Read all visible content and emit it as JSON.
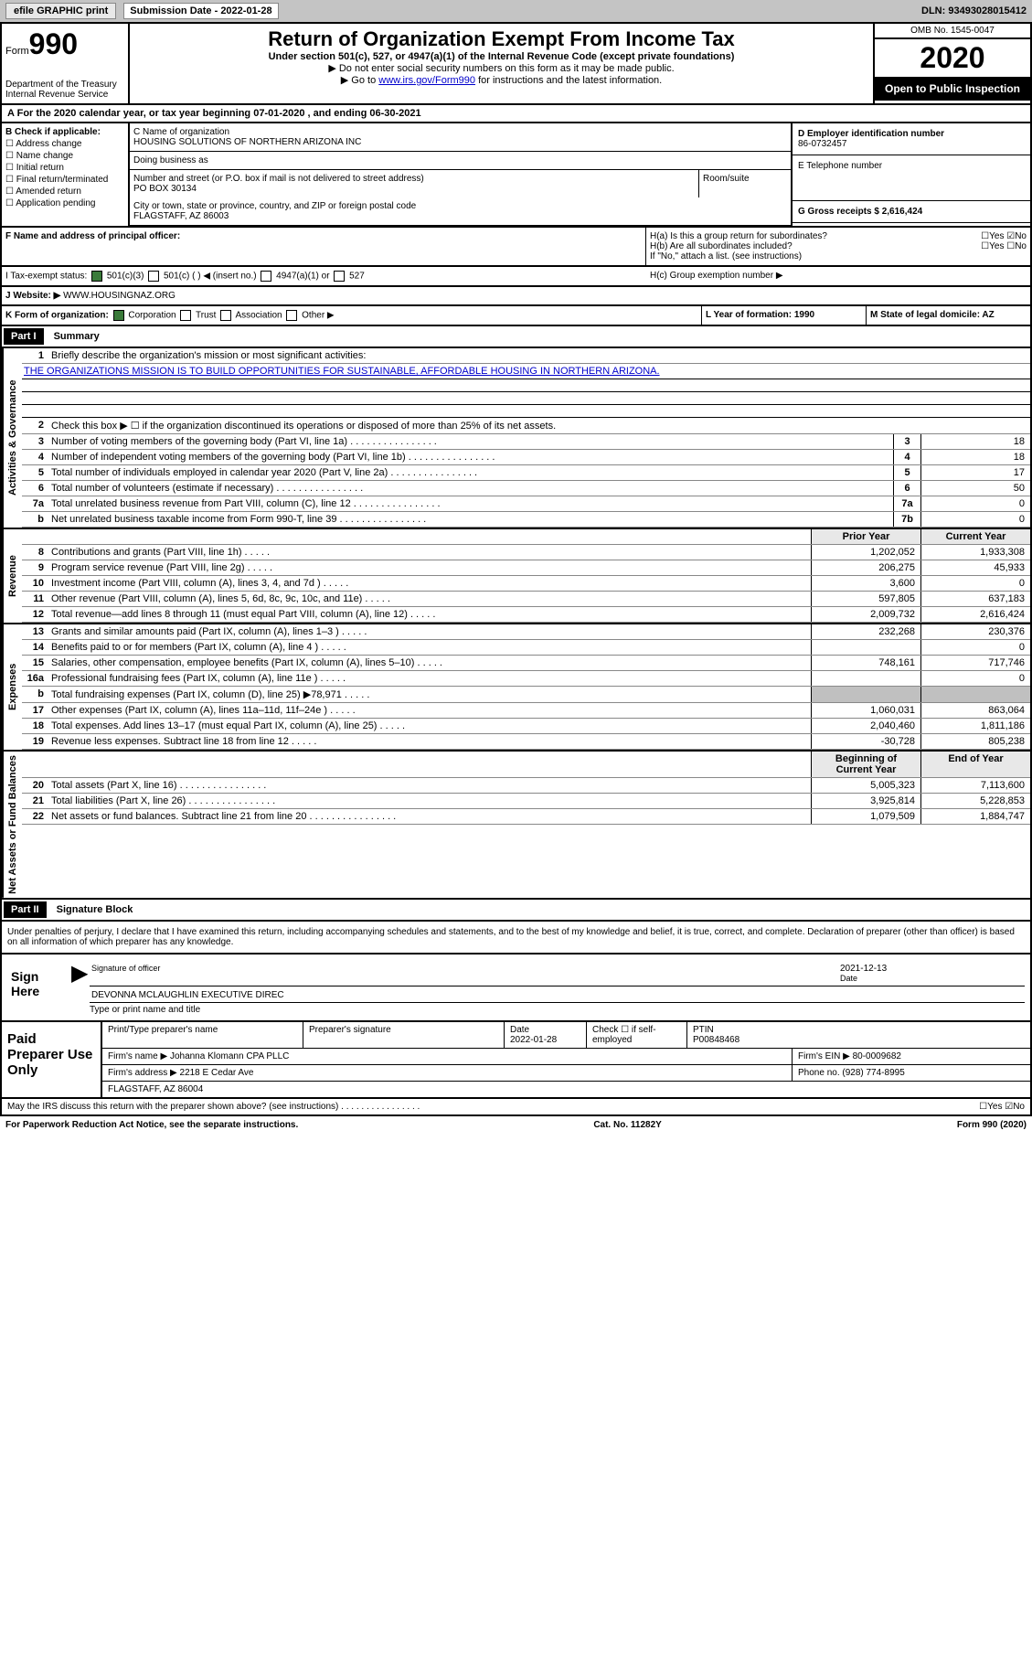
{
  "topbar": {
    "efile": "efile GRAPHIC print",
    "sub_label": "Submission Date - 2022-01-28",
    "dln": "DLN: 93493028015412"
  },
  "header": {
    "form_word": "Form",
    "form_num": "990",
    "dept1": "Department of the Treasury",
    "dept2": "Internal Revenue Service",
    "title": "Return of Organization Exempt From Income Tax",
    "subtitle": "Under section 501(c), 527, or 4947(a)(1) of the Internal Revenue Code (except private foundations)",
    "note1": "▶ Do not enter social security numbers on this form as it may be made public.",
    "note2_pre": "▶ Go to ",
    "note2_link": "www.irs.gov/Form990",
    "note2_post": " for instructions and the latest information.",
    "omb": "OMB No. 1545-0047",
    "year": "2020",
    "inspection": "Open to Public Inspection"
  },
  "line_a": "For the 2020 calendar year, or tax year beginning 07-01-2020    , and ending 06-30-2021",
  "box_b": {
    "label": "B Check if applicable:",
    "opts": [
      "Address change",
      "Name change",
      "Initial return",
      "Final return/terminated",
      "Amended return",
      "Application pending"
    ]
  },
  "box_c": {
    "c_label": "C Name of organization",
    "org_name": "HOUSING SOLUTIONS OF NORTHERN ARIZONA INC",
    "dba_label": "Doing business as",
    "addr_label": "Number and street (or P.O. box if mail is not delivered to street address)",
    "room_label": "Room/suite",
    "addr": "PO BOX 30134",
    "city_label": "City or town, state or province, country, and ZIP or foreign postal code",
    "city": "FLAGSTAFF, AZ  86003",
    "f_label": "F  Name and address of principal officer:"
  },
  "box_d": {
    "d_label": "D Employer identification number",
    "ein": "86-0732457",
    "e_label": "E Telephone number",
    "g_label": "G Gross receipts $ 2,616,424"
  },
  "box_h": {
    "ha": "H(a)  Is this a group return for subordinates?",
    "hb": "H(b)  Are all subordinates included?",
    "hb_note": "If \"No,\" attach a list. (see instructions)",
    "hc": "H(c)  Group exemption number ▶",
    "yes": "Yes",
    "no": "No"
  },
  "tax_exempt": {
    "i_label": "I  Tax-exempt status:",
    "opt1": "501(c)(3)",
    "opt2": "501(c) (   ) ◀ (insert no.)",
    "opt3": "4947(a)(1) or",
    "opt4": "527"
  },
  "website": {
    "j_label": "J  Website: ▶",
    "val": "WWW.HOUSINGNAZ.ORG"
  },
  "box_k": {
    "label": "K Form of organization:",
    "opts": [
      "Corporation",
      "Trust",
      "Association",
      "Other ▶"
    ],
    "l_label": "L Year of formation: 1990",
    "m_label": "M State of legal domicile: AZ"
  },
  "part1": {
    "hdr": "Part I",
    "title": "Summary",
    "q1": "Briefly describe the organization's mission or most significant activities:",
    "mission": "THE ORGANIZATIONS MISSION IS TO BUILD OPPORTUNITIES FOR SUSTAINABLE, AFFORDABLE HOUSING IN NORTHERN ARIZONA.",
    "q2": "Check this box ▶ ☐  if the organization discontinued its operations or disposed of more than 25% of its net assets.",
    "sec_ag": "Activities & Governance",
    "sec_rev": "Revenue",
    "sec_exp": "Expenses",
    "sec_net": "Net Assets or Fund Balances",
    "rows_gov": [
      {
        "n": "3",
        "d": "Number of voting members of the governing body (Part VI, line 1a)",
        "b": "3",
        "v": "18"
      },
      {
        "n": "4",
        "d": "Number of independent voting members of the governing body (Part VI, line 1b)",
        "b": "4",
        "v": "18"
      },
      {
        "n": "5",
        "d": "Total number of individuals employed in calendar year 2020 (Part V, line 2a)",
        "b": "5",
        "v": "17"
      },
      {
        "n": "6",
        "d": "Total number of volunteers (estimate if necessary)",
        "b": "6",
        "v": "50"
      },
      {
        "n": "7a",
        "d": "Total unrelated business revenue from Part VIII, column (C), line 12",
        "b": "7a",
        "v": "0"
      },
      {
        "n": "b",
        "d": "Net unrelated business taxable income from Form 990-T, line 39",
        "b": "7b",
        "v": "0"
      }
    ],
    "hdr_prior": "Prior Year",
    "hdr_curr": "Current Year",
    "rows_rev": [
      {
        "n": "8",
        "d": "Contributions and grants (Part VIII, line 1h)",
        "p": "1,202,052",
        "c": "1,933,308"
      },
      {
        "n": "9",
        "d": "Program service revenue (Part VIII, line 2g)",
        "p": "206,275",
        "c": "45,933"
      },
      {
        "n": "10",
        "d": "Investment income (Part VIII, column (A), lines 3, 4, and 7d )",
        "p": "3,600",
        "c": "0"
      },
      {
        "n": "11",
        "d": "Other revenue (Part VIII, column (A), lines 5, 6d, 8c, 9c, 10c, and 11e)",
        "p": "597,805",
        "c": "637,183"
      },
      {
        "n": "12",
        "d": "Total revenue—add lines 8 through 11 (must equal Part VIII, column (A), line 12)",
        "p": "2,009,732",
        "c": "2,616,424"
      }
    ],
    "rows_exp": [
      {
        "n": "13",
        "d": "Grants and similar amounts paid (Part IX, column (A), lines 1–3 )",
        "p": "232,268",
        "c": "230,376"
      },
      {
        "n": "14",
        "d": "Benefits paid to or for members (Part IX, column (A), line 4 )",
        "p": "",
        "c": "0"
      },
      {
        "n": "15",
        "d": "Salaries, other compensation, employee benefits (Part IX, column (A), lines 5–10)",
        "p": "748,161",
        "c": "717,746"
      },
      {
        "n": "16a",
        "d": "Professional fundraising fees (Part IX, column (A), line 11e )",
        "p": "",
        "c": "0"
      },
      {
        "n": "b",
        "d": "Total fundraising expenses (Part IX, column (D), line 25) ▶78,971",
        "p": "GRAY",
        "c": "GRAY"
      },
      {
        "n": "17",
        "d": "Other expenses (Part IX, column (A), lines 11a–11d, 11f–24e )",
        "p": "1,060,031",
        "c": "863,064"
      },
      {
        "n": "18",
        "d": "Total expenses. Add lines 13–17 (must equal Part IX, column (A), line 25)",
        "p": "2,040,460",
        "c": "1,811,186"
      },
      {
        "n": "19",
        "d": "Revenue less expenses. Subtract line 18 from line 12",
        "p": "-30,728",
        "c": "805,238"
      }
    ],
    "hdr_beg": "Beginning of Current Year",
    "hdr_end": "End of Year",
    "rows_net": [
      {
        "n": "20",
        "d": "Total assets (Part X, line 16)",
        "p": "5,005,323",
        "c": "7,113,600"
      },
      {
        "n": "21",
        "d": "Total liabilities (Part X, line 26)",
        "p": "3,925,814",
        "c": "5,228,853"
      },
      {
        "n": "22",
        "d": "Net assets or fund balances. Subtract line 21 from line 20",
        "p": "1,079,509",
        "c": "1,884,747"
      }
    ]
  },
  "part2": {
    "hdr": "Part II",
    "title": "Signature Block",
    "decl": "Under penalties of perjury, I declare that I have examined this return, including accompanying schedules and statements, and to the best of my knowledge and belief, it is true, correct, and complete. Declaration of preparer (other than officer) is based on all information of which preparer has any knowledge.",
    "sign_here": "Sign Here",
    "sig_off": "Signature of officer",
    "sig_date": "2021-12-13",
    "date_lbl": "Date",
    "officer": "DEVONNA MCLAUGHLIN  EXECUTIVE DIREC",
    "type_lbl": "Type or print name and title"
  },
  "prep": {
    "title": "Paid Preparer Use Only",
    "r1": {
      "c1": "Print/Type preparer's name",
      "c2": "Preparer's signature",
      "c3_lbl": "Date",
      "c3": "2022-01-28",
      "c4": "Check ☐ if self-employed",
      "c5_lbl": "PTIN",
      "c5": "P00848468"
    },
    "r2": {
      "c1": "Firm's name      ▶ Johanna Klomann CPA PLLC",
      "c2": "Firm's EIN ▶ 80-0009682"
    },
    "r3": {
      "c1": "Firm's address ▶ 2218 E Cedar Ave",
      "c2": "Phone no. (928) 774-8995"
    },
    "r4": "FLAGSTAFF, AZ  86004"
  },
  "footer": {
    "discuss": "May the IRS discuss this return with the preparer shown above? (see instructions)",
    "yes": "Yes",
    "no": "No",
    "paperwork": "For Paperwork Reduction Act Notice, see the separate instructions.",
    "cat": "Cat. No. 11282Y",
    "form": "Form 990 (2020)"
  }
}
